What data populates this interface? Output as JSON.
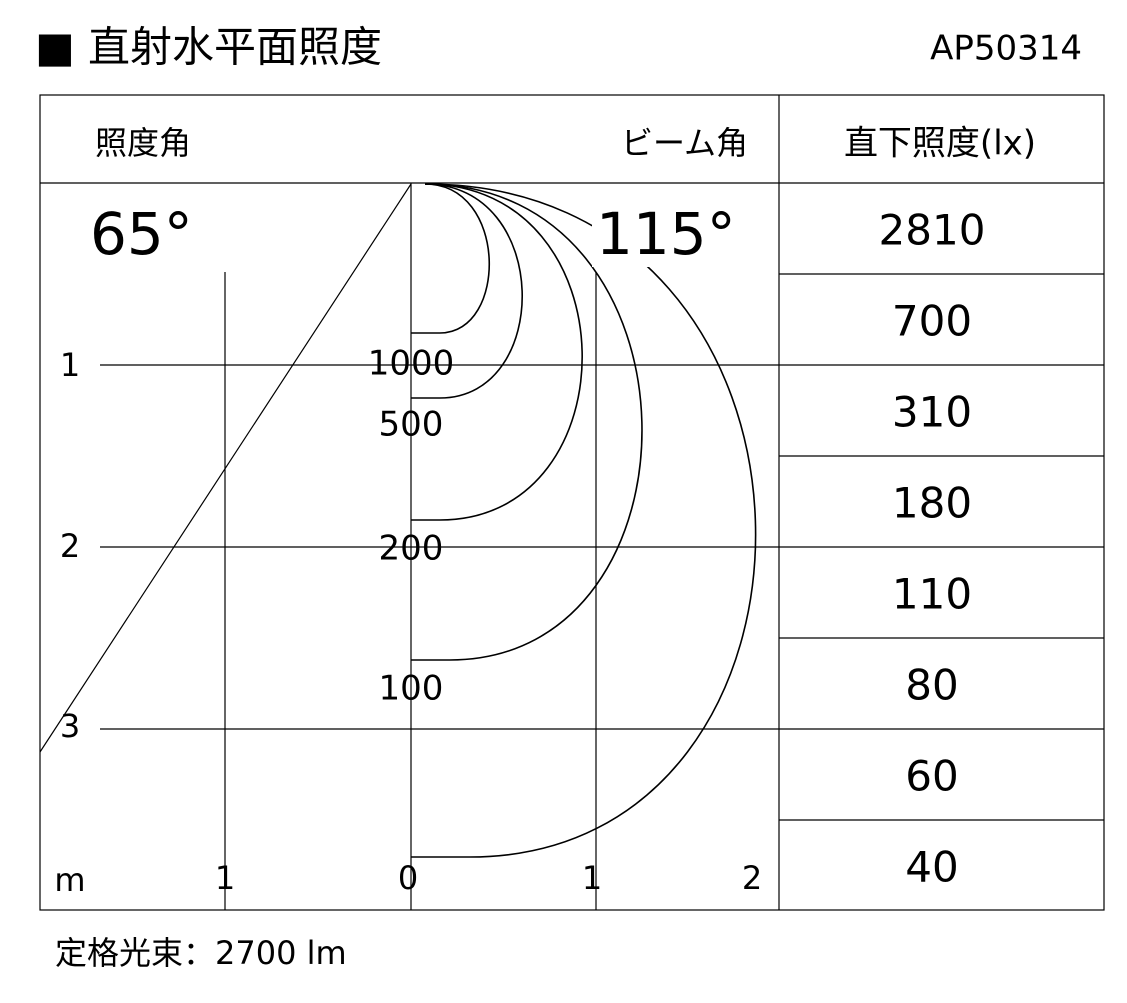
{
  "header": {
    "title": "■ 直射水平面照度",
    "model": "AP50314"
  },
  "diagram": {
    "headers": {
      "illuminance_angle": "照度角",
      "beam_angle": "ビーム角",
      "direct_illuminance": "直下照度(lx)"
    },
    "angles": {
      "illuminance_angle": "65°",
      "beam_angle": "115°"
    },
    "depth_labels": [
      "1",
      "2",
      "3"
    ],
    "width_labels": [
      "m",
      "1",
      "0",
      "1",
      "2"
    ],
    "curve_labels": [
      "1000",
      "500",
      "200",
      "100"
    ],
    "table": [
      "2810",
      "700",
      "310",
      "180",
      "110",
      "80",
      "60",
      "40"
    ]
  },
  "footer": {
    "rated_flux": "定格光束：2700 lm"
  }
}
